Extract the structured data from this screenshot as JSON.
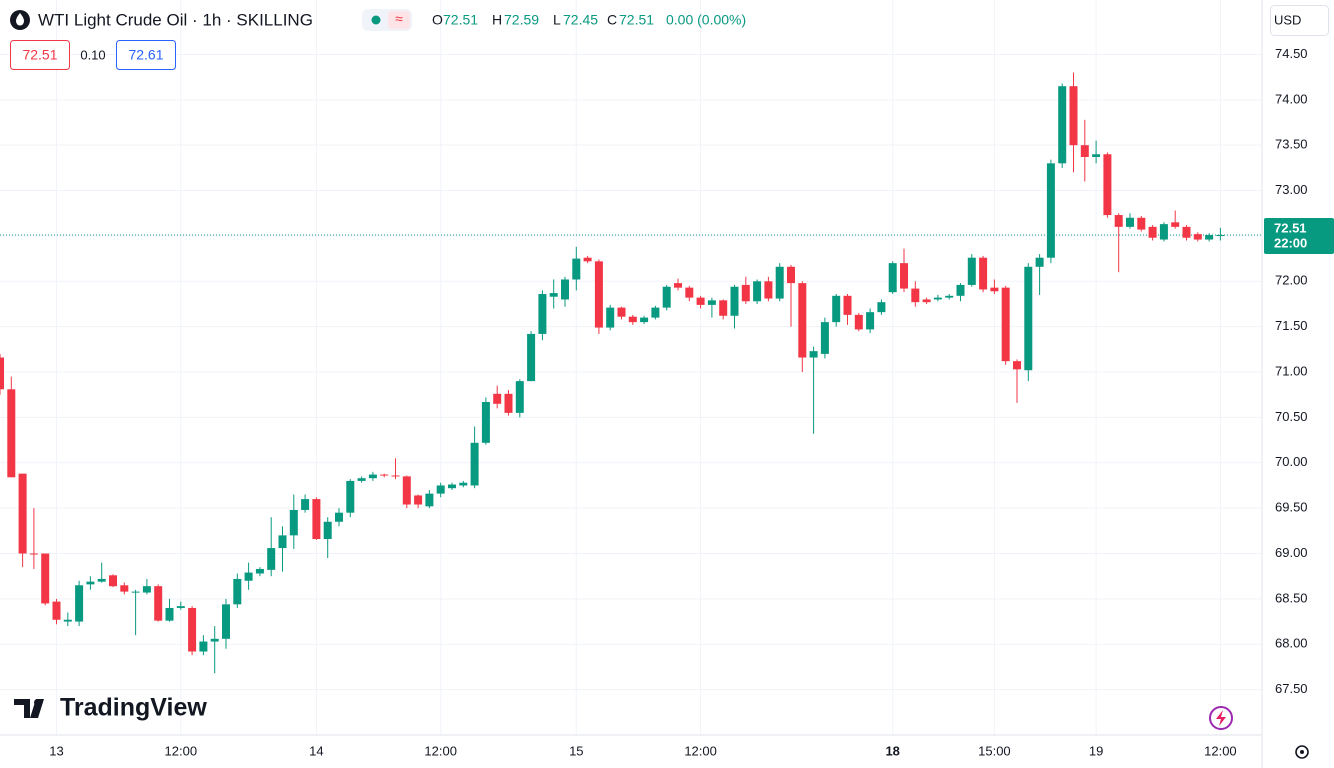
{
  "header": {
    "title": "WTI Light Crude Oil · 1h · SKILLING",
    "ohlc_labels": [
      "O",
      "H",
      "L",
      "C"
    ],
    "change": "0.00 (0.00%)"
  },
  "quote": {
    "bid": "72.51",
    "spread": "0.10",
    "ask": "72.61"
  },
  "currency": "USD",
  "countdown": "22:00",
  "logo": "TradingView",
  "chart_data": {
    "type": "candlestick",
    "up_color": "#089981",
    "down_color": "#f23645",
    "grid": true,
    "ylim": [
      67.0,
      75.1
    ],
    "yticks": [
      {
        "value": 67.5,
        "label": "67.50"
      },
      {
        "value": 68,
        "label": "68.00"
      },
      {
        "value": 68.5,
        "label": "68.50"
      },
      {
        "value": 69,
        "label": "69.00"
      },
      {
        "value": 69.5,
        "label": "69.50"
      },
      {
        "value": 70,
        "label": "70.00"
      },
      {
        "value": 70.5,
        "label": "70.50"
      },
      {
        "value": 71,
        "label": "71.00"
      },
      {
        "value": 71.5,
        "label": "71.50"
      },
      {
        "value": 72,
        "label": "72.00"
      },
      {
        "value": 72.5,
        "label": "72.50"
      },
      {
        "value": 73,
        "label": "73.00"
      },
      {
        "value": 73.5,
        "label": "73.50"
      },
      {
        "value": 74,
        "label": "74.00"
      },
      {
        "value": 74.5,
        "label": "74.50"
      }
    ],
    "categories": [
      null,
      null,
      null,
      null,
      null,
      "13",
      null,
      null,
      null,
      null,
      null,
      null,
      null,
      null,
      null,
      null,
      "12:00",
      null,
      null,
      null,
      null,
      null,
      null,
      null,
      null,
      null,
      null,
      null,
      "14",
      null,
      null,
      null,
      null,
      null,
      null,
      null,
      null,
      null,
      null,
      "12:00",
      null,
      null,
      null,
      null,
      null,
      null,
      null,
      null,
      null,
      null,
      null,
      "15",
      null,
      null,
      null,
      null,
      null,
      null,
      null,
      null,
      null,
      null,
      "12:00",
      null,
      null,
      null,
      null,
      null,
      null,
      null,
      null,
      null,
      null,
      null,
      null,
      null,
      null,
      null,
      null,
      "18",
      null,
      null,
      null,
      null,
      null,
      null,
      null,
      null,
      "15:00",
      null,
      null,
      null,
      null,
      null,
      null,
      null,
      null,
      "19",
      null,
      null,
      null,
      null,
      null,
      null,
      null,
      null,
      null,
      null,
      "12:00"
    ],
    "open": [
      71.16,
      70.81,
      69.88,
      69.0,
      69.0,
      68.47,
      68.25,
      68.25,
      68.66,
      68.69,
      68.76,
      68.65,
      68.58,
      68.57,
      68.64,
      68.26,
      68.4,
      68.4,
      67.92,
      68.03,
      68.06,
      68.44,
      68.7,
      68.78,
      68.82,
      69.06,
      69.2,
      69.48,
      69.6,
      69.16,
      69.35,
      69.45,
      69.8,
      69.83,
      69.87,
      69.86,
      69.85,
      69.64,
      69.52,
      69.66,
      69.72,
      69.75,
      69.75,
      70.22,
      70.76,
      70.76,
      70.55,
      70.9,
      71.42,
      71.83,
      71.8,
      72.02,
      72.26,
      72.22,
      71.49,
      71.71,
      71.61,
      71.55,
      71.6,
      71.71,
      71.98,
      71.93,
      71.82,
      71.74,
      71.79,
      71.62,
      71.96,
      71.78,
      72.0,
      71.81,
      72.16,
      71.98,
      71.16,
      71.2,
      71.55,
      71.84,
      71.63,
      71.47,
      71.66,
      71.88,
      72.2,
      71.92,
      71.8,
      71.8,
      71.82,
      71.84,
      71.96,
      72.26,
      71.93,
      71.93,
      71.12,
      71.02,
      72.16,
      72.26,
      73.3,
      74.15,
      73.5,
      73.37,
      73.4,
      72.73,
      72.6,
      72.7,
      72.6,
      72.46,
      72.65,
      72.6,
      72.52,
      72.46,
      72.51
    ],
    "high": [
      71.2,
      70.95,
      69.88,
      69.5,
      69.0,
      68.5,
      68.35,
      68.7,
      68.75,
      68.9,
      68.77,
      68.68,
      68.6,
      68.72,
      68.66,
      68.5,
      68.47,
      68.42,
      68.1,
      68.2,
      68.5,
      68.78,
      68.9,
      68.85,
      69.4,
      69.3,
      69.65,
      69.65,
      69.62,
      69.4,
      69.5,
      69.82,
      69.85,
      69.9,
      69.88,
      70.05,
      69.86,
      69.65,
      69.7,
      69.78,
      69.78,
      69.8,
      70.4,
      70.72,
      70.85,
      70.8,
      70.92,
      71.45,
      71.9,
      72.02,
      72.05,
      72.38,
      72.28,
      72.24,
      71.74,
      71.72,
      71.63,
      71.62,
      71.73,
      71.96,
      72.03,
      71.95,
      71.84,
      71.82,
      71.8,
      71.96,
      72.05,
      72.02,
      72.05,
      72.2,
      72.18,
      72.0,
      71.28,
      71.6,
      71.86,
      71.86,
      71.65,
      71.7,
      71.8,
      72.22,
      72.36,
      72.0,
      71.82,
      71.85,
      71.86,
      71.98,
      72.3,
      72.28,
      72.02,
      71.95,
      71.14,
      72.2,
      72.3,
      73.34,
      74.18,
      74.3,
      73.78,
      73.55,
      73.42,
      72.75,
      72.75,
      72.72,
      72.62,
      72.65,
      72.78,
      72.62,
      72.54,
      72.53,
      72.59
    ],
    "low": [
      70.75,
      69.84,
      68.85,
      68.83,
      68.43,
      68.22,
      68.2,
      68.2,
      68.6,
      68.68,
      68.63,
      68.55,
      68.1,
      68.55,
      68.25,
      68.25,
      68.38,
      67.88,
      67.88,
      67.68,
      67.95,
      68.4,
      68.6,
      68.75,
      68.75,
      68.8,
      69.05,
      69.45,
      69.15,
      68.95,
      69.3,
      69.4,
      69.78,
      69.8,
      69.84,
      69.82,
      69.5,
      69.5,
      69.5,
      69.62,
      69.7,
      69.73,
      69.72,
      70.2,
      70.6,
      70.52,
      70.5,
      70.9,
      71.35,
      71.7,
      71.72,
      71.9,
      72.2,
      71.42,
      71.46,
      71.58,
      71.52,
      71.53,
      71.58,
      71.68,
      71.9,
      71.78,
      71.7,
      71.6,
      71.58,
      71.48,
      71.75,
      71.75,
      71.78,
      71.78,
      71.5,
      71.0,
      70.32,
      71.15,
      71.5,
      71.52,
      71.45,
      71.43,
      71.63,
      71.86,
      71.88,
      71.72,
      71.75,
      71.78,
      71.8,
      71.78,
      71.94,
      71.88,
      71.86,
      71.08,
      70.66,
      70.9,
      71.85,
      72.2,
      73.25,
      73.2,
      73.1,
      73.3,
      72.7,
      72.1,
      72.58,
      72.55,
      72.45,
      72.44,
      72.58,
      72.45,
      72.44,
      72.44,
      72.45
    ],
    "close": [
      70.81,
      69.84,
      69.0,
      68.99,
      68.45,
      68.27,
      68.27,
      68.65,
      68.69,
      68.72,
      68.64,
      68.58,
      68.58,
      68.64,
      68.26,
      68.4,
      68.42,
      67.92,
      68.03,
      68.06,
      68.44,
      68.72,
      68.79,
      68.83,
      69.06,
      69.2,
      69.48,
      69.6,
      69.16,
      69.35,
      69.45,
      69.8,
      69.83,
      69.87,
      69.86,
      69.85,
      69.54,
      69.54,
      69.66,
      69.75,
      69.76,
      69.78,
      70.22,
      70.67,
      70.65,
      70.55,
      70.9,
      71.42,
      71.86,
      71.87,
      72.02,
      72.25,
      72.22,
      71.49,
      71.71,
      71.61,
      71.55,
      71.6,
      71.71,
      71.94,
      71.93,
      71.82,
      71.74,
      71.79,
      71.62,
      71.94,
      71.78,
      72.0,
      71.81,
      72.16,
      71.98,
      71.16,
      71.23,
      71.55,
      71.84,
      71.63,
      71.47,
      71.66,
      71.77,
      72.2,
      71.92,
      71.77,
      71.77,
      71.82,
      71.84,
      71.96,
      72.26,
      71.91,
      71.89,
      71.12,
      71.03,
      72.16,
      72.26,
      73.3,
      74.15,
      73.5,
      73.37,
      73.4,
      72.73,
      72.6,
      72.7,
      72.57,
      72.48,
      72.63,
      72.6,
      72.48,
      72.46,
      72.51,
      72.51
    ]
  }
}
